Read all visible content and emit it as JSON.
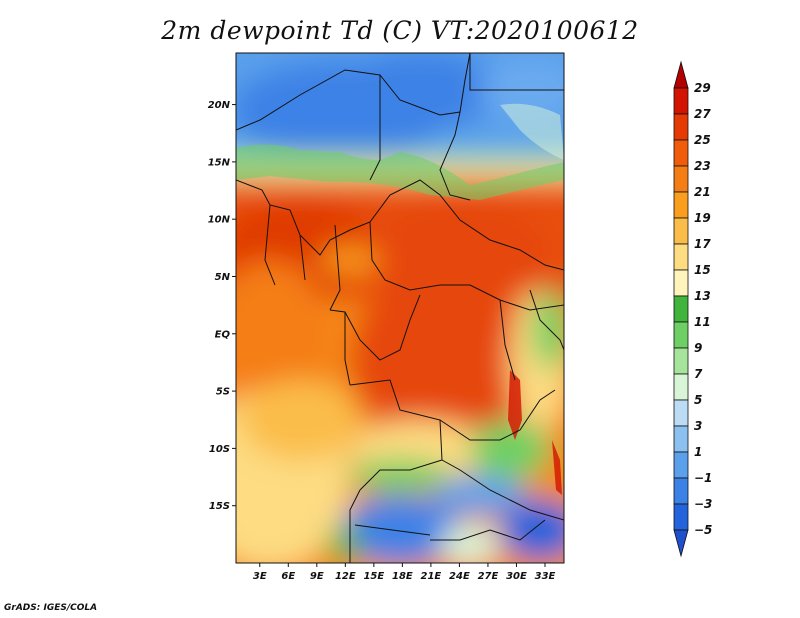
{
  "title": "2m dewpoint Td (C) VT:2020100612",
  "credit": "GrADS: IGES/COLA",
  "lat_labels": [
    "20N",
    "15N",
    "10N",
    "5N",
    "EQ",
    "5S",
    "10S",
    "15S"
  ],
  "lat_values": [
    20,
    15,
    10,
    5,
    0,
    -5,
    -10,
    -15
  ],
  "lon_labels": [
    "3E",
    "6E",
    "9E",
    "12E",
    "15E",
    "18E",
    "21E",
    "24E",
    "27E",
    "30E",
    "33E"
  ],
  "lon_values": [
    3,
    6,
    9,
    12,
    15,
    18,
    21,
    24,
    27,
    30,
    33
  ],
  "extent": {
    "lon_min": 0.5,
    "lon_max": 35,
    "lat_min": -20,
    "lat_max": 24.5
  },
  "colorbar": {
    "labels": [
      "29",
      "27",
      "25",
      "23",
      "21",
      "19",
      "17",
      "15",
      "13",
      "11",
      "9",
      "7",
      "5",
      "3",
      "1",
      "−1",
      "−3",
      "−5"
    ],
    "colors": [
      "#b50000",
      "#d21400",
      "#e63a05",
      "#f05c0a",
      "#f57e14",
      "#fa9e1e",
      "#fbbd4a",
      "#fddc82",
      "#fff5bc",
      "#40b43c",
      "#6ed064",
      "#a6e49c",
      "#d8f5d8",
      "#bcdcf5",
      "#8cc0f0",
      "#5aa0eb",
      "#3c82e6",
      "#2364dc",
      "#1e50cd"
    ]
  }
}
